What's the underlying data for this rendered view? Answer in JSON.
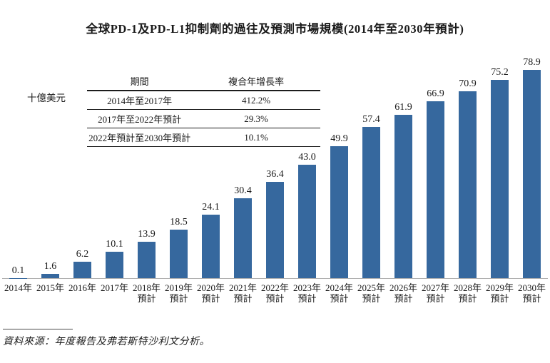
{
  "page": {
    "title": "全球PD-1及PD-L1抑制劑的過往及預測市場規模(2014年至2030年預計)",
    "y_axis_label": "十億美元",
    "source": "資料來源：年度報告及弗若斯特沙利文分析。"
  },
  "cagr_table": {
    "headers": [
      "期間",
      "複合年增長率"
    ],
    "rows": [
      {
        "period": "2014年至2017年",
        "cagr": "412.2%"
      },
      {
        "period": "2017年至2022年預計",
        "cagr": "29.3%"
      },
      {
        "period": "2022年預計至2030年預計",
        "cagr": "10.1%"
      }
    ]
  },
  "chart_data": {
    "type": "bar",
    "title": "全球PD-1及PD-L1抑制劑的過往及預測市場規模(2014年至2030年預計)",
    "ylabel": "十億美元",
    "xlabel": "",
    "unit": "十億美元",
    "categories": [
      "2014年",
      "2015年",
      "2016年",
      "2017年",
      "2018年\n預計",
      "2019年\n預計",
      "2020年\n預計",
      "2021年\n預計",
      "2022年\n預計",
      "2023年\n預計",
      "2024年\n預計",
      "2025年\n預計",
      "2026年\n預計",
      "2027年\n預計",
      "2028年\n預計",
      "2029年\n預計",
      "2030年\n預計"
    ],
    "values": [
      0.1,
      1.6,
      6.2,
      10.1,
      13.9,
      18.5,
      24.1,
      30.4,
      36.4,
      43.0,
      49.9,
      57.4,
      61.9,
      66.9,
      70.9,
      75.2,
      78.9
    ],
    "value_labels": [
      "0.1",
      "1.6",
      "6.2",
      "10.1",
      "13.9",
      "18.5",
      "24.1",
      "30.4",
      "36.4",
      "43.0",
      "49.9",
      "57.4",
      "61.9",
      "66.9",
      "70.9",
      "75.2",
      "78.9"
    ],
    "annotations": [
      "期間 2014年至2017年 複合年增長率 412.2%",
      "期間 2017年至2022年預計 複合年增長率 29.3%",
      "期間 2022年預計至2030年預計 複合年增長率 10.1%"
    ],
    "bar_color": "#36689E",
    "ylim": [
      0,
      80
    ],
    "grid": false,
    "legend_position": "none"
  }
}
